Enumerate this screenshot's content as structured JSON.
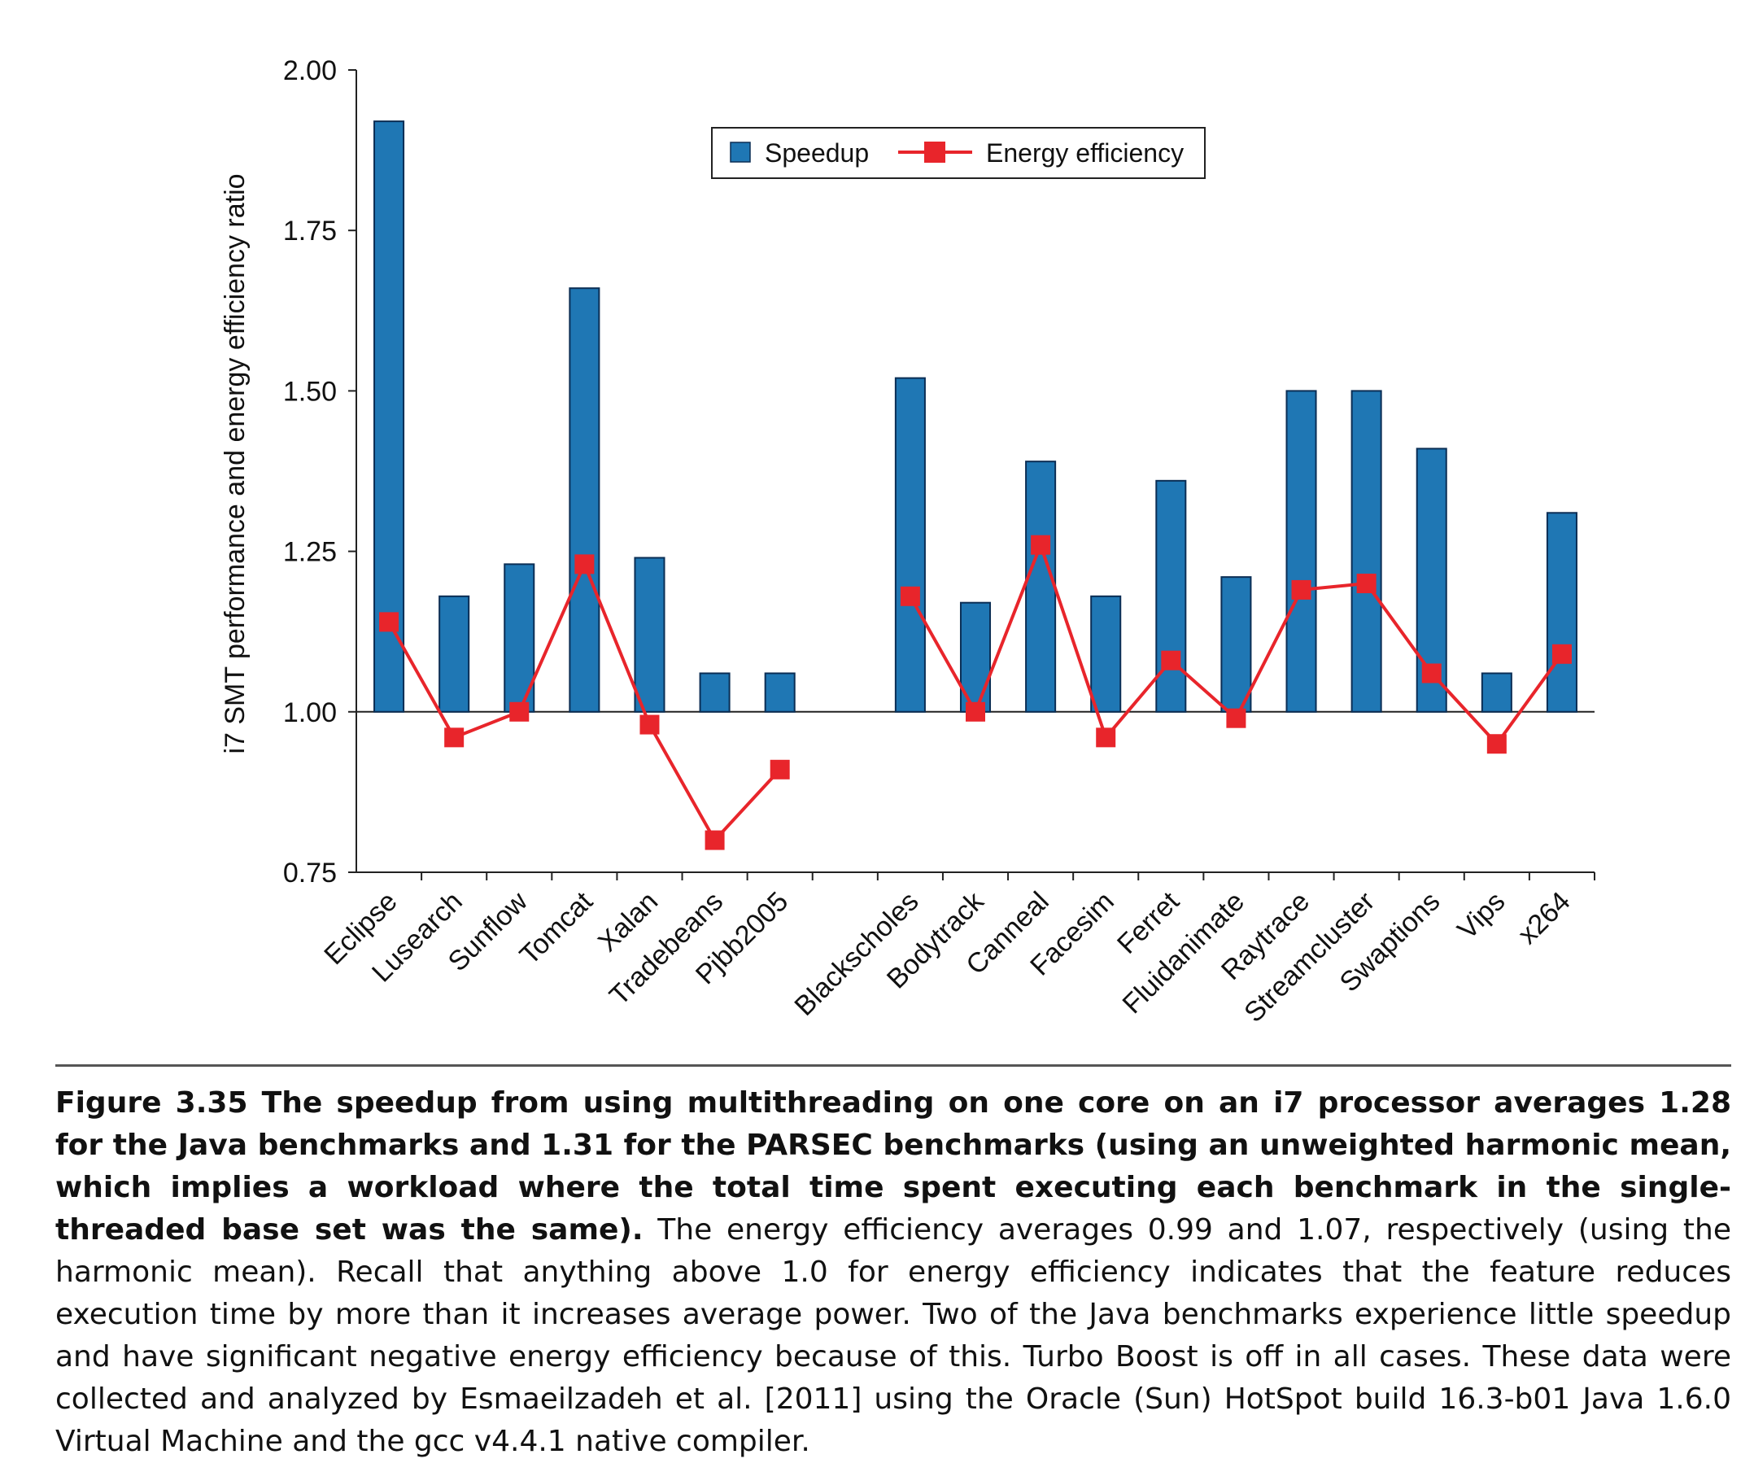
{
  "chart_data": {
    "type": "bar",
    "ylabel": "i7 SMT performance and energy efficiency ratio",
    "ylim": [
      0.75,
      2.0
    ],
    "yticks": [
      "2.00",
      "1.75",
      "1.50",
      "1.25",
      "1.00",
      "0.75"
    ],
    "baseline": 1.0,
    "legend_position": "top-center",
    "categories": [
      "Eclipse",
      "Lusearch",
      "Sunflow",
      "Tomcat",
      "Xalan",
      "Tradebeans",
      "Pjbb2005",
      "",
      "Blackscholes",
      "Bodytrack",
      "Canneal",
      "Facesim",
      "Ferret",
      "Fluidanimate",
      "Raytrace",
      "Streamcluster",
      "Swaptions",
      "Vips",
      "x264"
    ],
    "series": [
      {
        "name": "Speedup",
        "kind": "bar",
        "color": "#1f77b4",
        "values": [
          1.92,
          1.18,
          1.23,
          1.66,
          1.24,
          1.06,
          1.06,
          null,
          1.52,
          1.17,
          1.39,
          1.18,
          1.36,
          1.21,
          1.5,
          1.5,
          1.41,
          1.06,
          1.31
        ]
      },
      {
        "name": "Energy efficiency",
        "kind": "line",
        "color": "#e8252b",
        "values": [
          1.14,
          0.96,
          1.0,
          1.23,
          0.98,
          0.8,
          0.91,
          null,
          1.18,
          1.0,
          1.26,
          0.96,
          1.08,
          0.99,
          1.19,
          1.2,
          1.06,
          0.95,
          1.09
        ]
      }
    ]
  },
  "caption": {
    "bold": "Figure 3.35  The speedup from using multithreading on one core on an i7 processor averages 1.28 for the Java benchmarks and 1.31 for the PARSEC benchmarks (using an unweighted harmonic mean, which implies a workload where the total time spent executing each benchmark in the single-threaded base set was the same).",
    "normal": " The energy efficiency averages 0.99 and 1.07, respectively (using the harmonic mean). Recall that anything above 1.0 for energy efficiency indicates that the feature reduces execution time by more than it increases average power. Two of the Java benchmarks experience little speedup and have significant negative energy efficiency because of this. Turbo Boost is off in all cases. These data were collected and analyzed by Esmaeilzadeh et al. [2011] using the Oracle (Sun) HotSpot build 16.3-b01 Java 1.6.0 Virtual Machine and the gcc v4.4.1 native compiler."
  }
}
